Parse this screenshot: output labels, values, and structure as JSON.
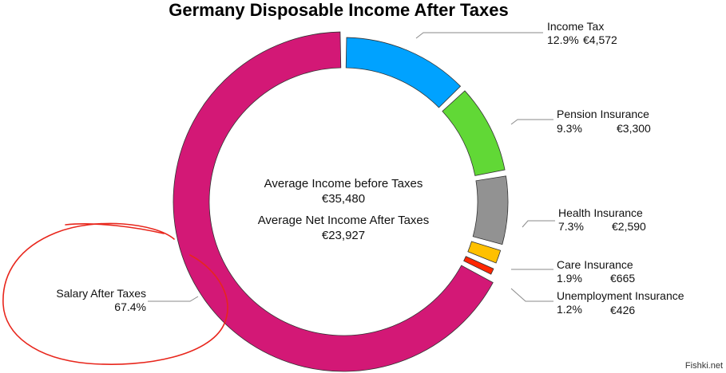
{
  "chart_data": {
    "type": "pie",
    "title": "Germany Disposable Income After Taxes",
    "center_text": [
      "Average Income before Taxes",
      "€35,480",
      "Average Net Income After Taxes",
      "€23,927"
    ],
    "slices": [
      {
        "name": "Income Tax",
        "percent": "12.9%",
        "value": "€4,572",
        "share": 12.9,
        "color": "#00A2FF"
      },
      {
        "name": "Pension Insurance",
        "percent": "9.3%",
        "value": "€3,300",
        "share": 9.3,
        "color": "#61D836"
      },
      {
        "name": "Health Insurance",
        "percent": "7.3%",
        "value": "€2,590",
        "share": 7.3,
        "color": "#929292"
      },
      {
        "name": "Care Insurance",
        "percent": "1.9%",
        "value": "€665",
        "share": 1.9,
        "color": "#FFC000"
      },
      {
        "name": "Unemployment Insurance",
        "percent": "1.2%",
        "value": "€426",
        "share": 1.2,
        "color": "#FF2600"
      },
      {
        "name": "Salary After Taxes",
        "percent": "67.4%",
        "value": "",
        "share": 67.4,
        "color": "#D31876"
      }
    ],
    "highlight_color": "#E8261C"
  },
  "watermark": "Fishki.net"
}
